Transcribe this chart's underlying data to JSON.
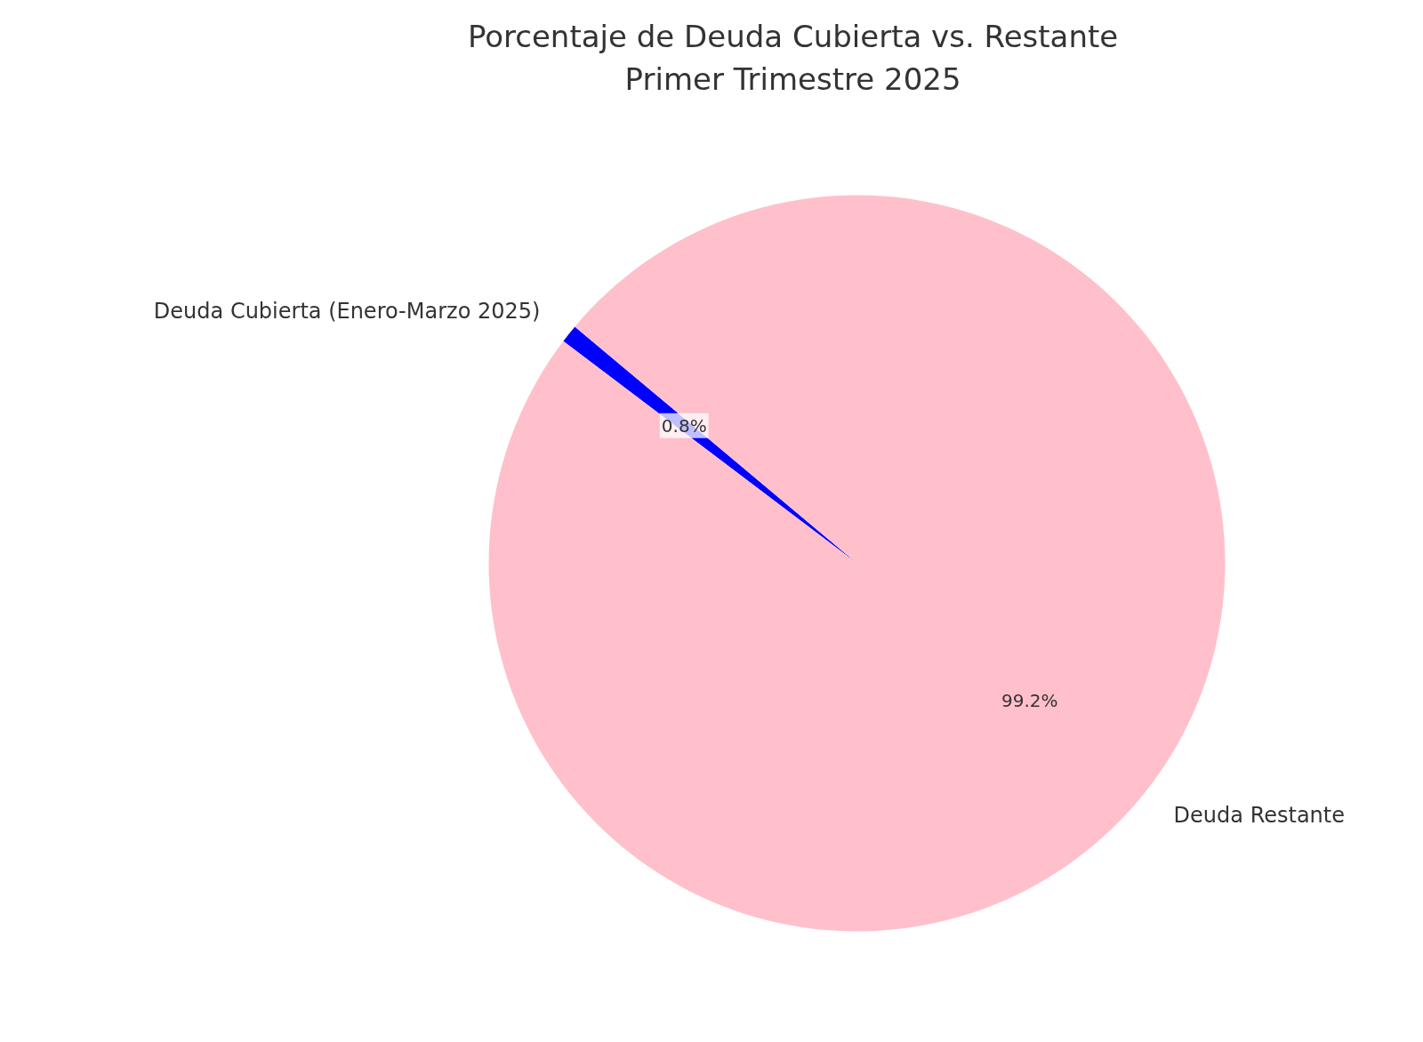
{
  "chart_data": {
    "type": "pie",
    "title": "Porcentaje de Deuda Cubierta vs. Restante\nPrimer Trimestre 2025",
    "categories": [
      "Deuda Cubierta (Enero-Marzo 2025)",
      "Deuda Restante"
    ],
    "values": [
      0.8,
      99.2
    ],
    "colors": [
      "#0000ff",
      "#ffc0cb"
    ],
    "value_labels": [
      "0.8%",
      "99.2%"
    ]
  }
}
